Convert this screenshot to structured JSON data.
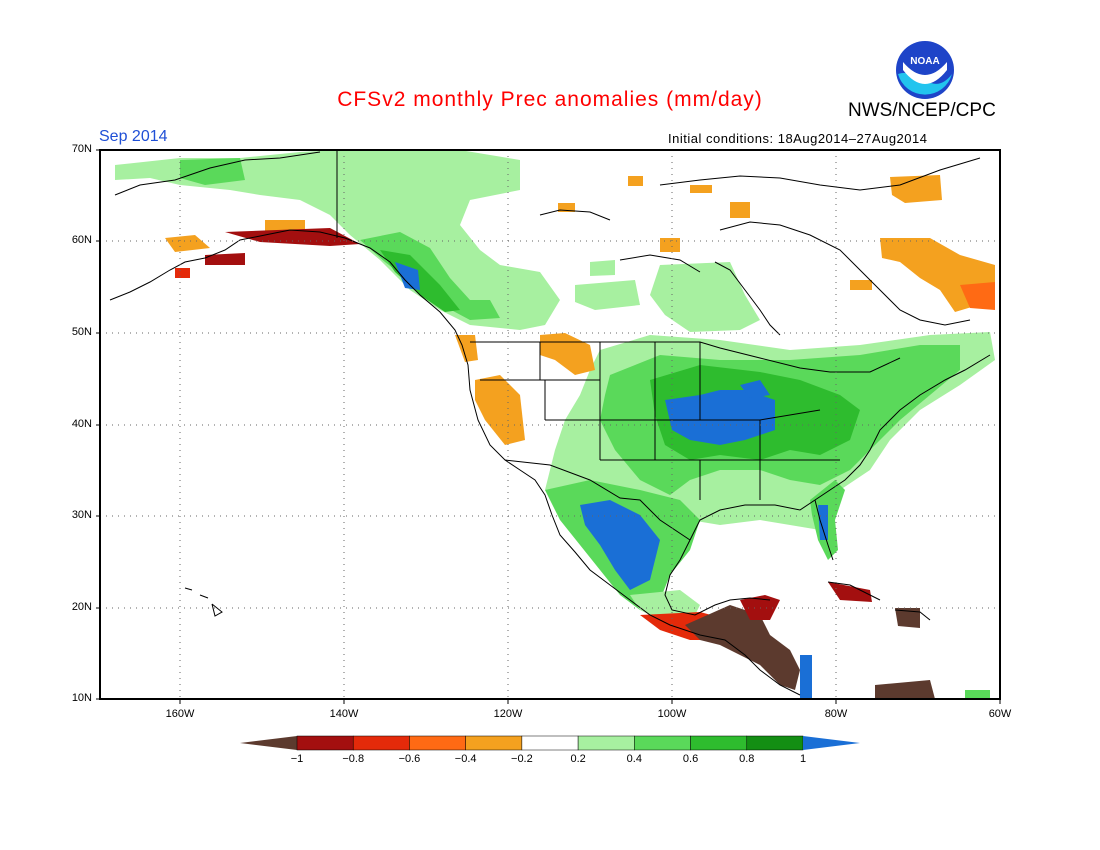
{
  "title": "CFSv2 monthly Prec anomalies (mm/day)",
  "org": "NWS/NCEP/CPC",
  "logo_text": "NOAA",
  "month": "Sep 2014",
  "initial_conditions": "Initial conditions: 18Aug2014–27Aug2014",
  "colors": {
    "title": "#ff0000",
    "month": "#1f4fd6",
    "land_line": "#000000",
    "grid": "#666666"
  },
  "lat_labels": [
    "70N",
    "60N",
    "50N",
    "40N",
    "30N",
    "20N",
    "10N"
  ],
  "lon_labels": [
    "160W",
    "140W",
    "120W",
    "100W",
    "80W",
    "60W"
  ],
  "colorbar": {
    "colors": [
      "#5c3a2e",
      "#a30f0f",
      "#e42a0a",
      "#ff6a14",
      "#f4a11f",
      "#ffffff",
      "#a7f0a0",
      "#5ad95a",
      "#2ebc2e",
      "#138e13",
      "#1a6fd6"
    ],
    "labels": [
      "−1",
      "−0.8",
      "−0.6",
      "−0.4",
      "−0.2",
      "0.2",
      "0.4",
      "0.6",
      "0.8",
      "1"
    ]
  }
}
